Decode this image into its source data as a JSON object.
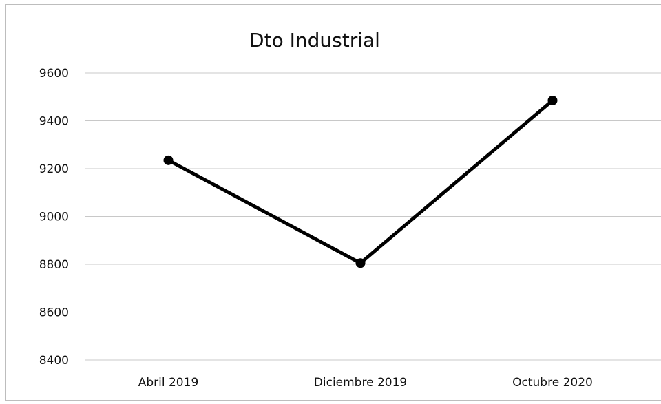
{
  "chart_data": {
    "type": "line",
    "title": "Dto Industrial",
    "categories": [
      "Abril 2019",
      "Diciembre 2019",
      "Octubre 2020"
    ],
    "series": [
      {
        "values": [
          9235,
          8805,
          9485
        ]
      }
    ],
    "ylim": [
      8400,
      9600
    ],
    "yticks": [
      9600,
      9400,
      9200,
      9000,
      8800,
      8600,
      8400
    ],
    "grid": true,
    "legend": "none",
    "colors": {
      "line": "#000000",
      "grid": "#c8c8c8"
    }
  }
}
